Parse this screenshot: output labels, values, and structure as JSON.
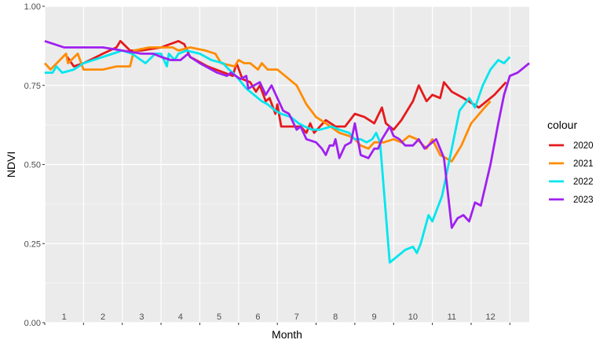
{
  "chart_data": {
    "type": "line",
    "xlabel": "Month",
    "ylabel": "NDVI",
    "xlim": [
      0,
      12.5
    ],
    "ylim": [
      0,
      1
    ],
    "x_ticks": [
      0,
      1,
      2,
      3,
      4,
      5,
      6,
      7,
      8,
      9,
      10,
      11,
      12
    ],
    "month_labels": [
      "1",
      "2",
      "3",
      "4",
      "5",
      "6",
      "7",
      "8",
      "9",
      "10",
      "11",
      "12"
    ],
    "y_ticks": [
      0,
      0.25,
      0.5,
      0.75,
      1
    ],
    "y_tick_labels": [
      "0.00",
      "0.25",
      "0.50",
      "0.75",
      "1.00"
    ],
    "grid": true,
    "legend": {
      "title": "colour",
      "position": "right"
    },
    "series": [
      {
        "name": "2020",
        "color": "#e41a1c",
        "points": [
          [
            0.58,
            0.84
          ],
          [
            0.75,
            0.81
          ],
          [
            1.0,
            0.82
          ],
          [
            1.5,
            0.85
          ],
          [
            1.85,
            0.87
          ],
          [
            1.95,
            0.89
          ],
          [
            2.2,
            0.86
          ],
          [
            2.5,
            0.86
          ],
          [
            3.0,
            0.87
          ],
          [
            3.45,
            0.89
          ],
          [
            3.6,
            0.88
          ],
          [
            3.75,
            0.84
          ],
          [
            4.2,
            0.81
          ],
          [
            4.85,
            0.78
          ],
          [
            4.95,
            0.82
          ],
          [
            5.1,
            0.77
          ],
          [
            5.3,
            0.76
          ],
          [
            5.45,
            0.73
          ],
          [
            5.55,
            0.75
          ],
          [
            5.7,
            0.7
          ],
          [
            5.8,
            0.71
          ],
          [
            5.95,
            0.66
          ],
          [
            6.0,
            0.69
          ],
          [
            6.1,
            0.62
          ],
          [
            6.3,
            0.62
          ],
          [
            6.6,
            0.62
          ],
          [
            6.75,
            0.6
          ],
          [
            6.85,
            0.63
          ],
          [
            6.95,
            0.6
          ],
          [
            7.1,
            0.62
          ],
          [
            7.25,
            0.64
          ],
          [
            7.5,
            0.62
          ],
          [
            7.75,
            0.62
          ],
          [
            8.0,
            0.66
          ],
          [
            8.25,
            0.65
          ],
          [
            8.5,
            0.63
          ],
          [
            8.7,
            0.68
          ],
          [
            8.8,
            0.63
          ],
          [
            9.0,
            0.61
          ],
          [
            9.2,
            0.64
          ],
          [
            9.5,
            0.7
          ],
          [
            9.65,
            0.75
          ],
          [
            9.85,
            0.7
          ],
          [
            10.0,
            0.72
          ],
          [
            10.2,
            0.71
          ],
          [
            10.3,
            0.76
          ],
          [
            10.5,
            0.73
          ],
          [
            10.8,
            0.71
          ],
          [
            11.2,
            0.68
          ],
          [
            11.6,
            0.72
          ],
          [
            11.9,
            0.76
          ]
        ]
      },
      {
        "name": "2021",
        "color": "#ff8c00",
        "points": [
          [
            0.0,
            0.82
          ],
          [
            0.15,
            0.8
          ],
          [
            0.55,
            0.85
          ],
          [
            0.6,
            0.82
          ],
          [
            0.85,
            0.85
          ],
          [
            1.0,
            0.8
          ],
          [
            1.5,
            0.8
          ],
          [
            1.85,
            0.81
          ],
          [
            2.2,
            0.81
          ],
          [
            2.3,
            0.86
          ],
          [
            2.7,
            0.87
          ],
          [
            3.0,
            0.87
          ],
          [
            3.3,
            0.87
          ],
          [
            3.45,
            0.86
          ],
          [
            3.75,
            0.87
          ],
          [
            4.15,
            0.86
          ],
          [
            4.4,
            0.85
          ],
          [
            4.55,
            0.82
          ],
          [
            4.9,
            0.81
          ],
          [
            5.0,
            0.83
          ],
          [
            5.15,
            0.82
          ],
          [
            5.3,
            0.82
          ],
          [
            5.5,
            0.8
          ],
          [
            5.6,
            0.82
          ],
          [
            5.75,
            0.8
          ],
          [
            6.0,
            0.8
          ],
          [
            6.5,
            0.75
          ],
          [
            6.75,
            0.69
          ],
          [
            7.0,
            0.65
          ],
          [
            7.25,
            0.63
          ],
          [
            7.6,
            0.6
          ],
          [
            7.85,
            0.59
          ],
          [
            8.0,
            0.58
          ],
          [
            8.15,
            0.56
          ],
          [
            8.35,
            0.55
          ],
          [
            8.5,
            0.57
          ],
          [
            8.75,
            0.57
          ],
          [
            9.0,
            0.58
          ],
          [
            9.2,
            0.57
          ],
          [
            9.4,
            0.59
          ],
          [
            9.6,
            0.58
          ],
          [
            9.85,
            0.55
          ],
          [
            10.0,
            0.58
          ],
          [
            10.2,
            0.53
          ],
          [
            10.5,
            0.51
          ],
          [
            10.75,
            0.56
          ],
          [
            11.0,
            0.63
          ],
          [
            11.35,
            0.68
          ],
          [
            11.5,
            0.7
          ]
        ]
      },
      {
        "name": "2022",
        "color": "#00e5ee",
        "points": [
          [
            0.0,
            0.79
          ],
          [
            0.2,
            0.79
          ],
          [
            0.3,
            0.81
          ],
          [
            0.45,
            0.79
          ],
          [
            0.75,
            0.8
          ],
          [
            1.0,
            0.82
          ],
          [
            1.5,
            0.84
          ],
          [
            2.0,
            0.86
          ],
          [
            2.25,
            0.85
          ],
          [
            2.6,
            0.82
          ],
          [
            2.85,
            0.85
          ],
          [
            3.0,
            0.85
          ],
          [
            3.15,
            0.81
          ],
          [
            3.2,
            0.85
          ],
          [
            3.35,
            0.83
          ],
          [
            3.45,
            0.85
          ],
          [
            3.65,
            0.86
          ],
          [
            4.0,
            0.85
          ],
          [
            4.3,
            0.83
          ],
          [
            4.6,
            0.82
          ],
          [
            4.75,
            0.8
          ],
          [
            4.85,
            0.79
          ],
          [
            5.0,
            0.77
          ],
          [
            5.2,
            0.74
          ],
          [
            5.4,
            0.72
          ],
          [
            5.6,
            0.7
          ],
          [
            5.75,
            0.69
          ],
          [
            5.95,
            0.67
          ],
          [
            6.1,
            0.66
          ],
          [
            6.35,
            0.65
          ],
          [
            6.55,
            0.63
          ],
          [
            6.7,
            0.62
          ],
          [
            6.9,
            0.61
          ],
          [
            7.1,
            0.61
          ],
          [
            7.4,
            0.62
          ],
          [
            7.6,
            0.61
          ],
          [
            7.85,
            0.6
          ],
          [
            8.0,
            0.58
          ],
          [
            8.15,
            0.58
          ],
          [
            8.3,
            0.57
          ],
          [
            8.45,
            0.58
          ],
          [
            8.55,
            0.6
          ],
          [
            8.65,
            0.57
          ],
          [
            8.9,
            0.19
          ],
          [
            9.1,
            0.21
          ],
          [
            9.3,
            0.23
          ],
          [
            9.5,
            0.24
          ],
          [
            9.6,
            0.22
          ],
          [
            9.7,
            0.25
          ],
          [
            9.9,
            0.34
          ],
          [
            10.0,
            0.32
          ],
          [
            10.25,
            0.4
          ],
          [
            10.5,
            0.55
          ],
          [
            10.7,
            0.67
          ],
          [
            10.95,
            0.71
          ],
          [
            11.1,
            0.68
          ],
          [
            11.3,
            0.75
          ],
          [
            11.5,
            0.8
          ],
          [
            11.7,
            0.83
          ],
          [
            11.85,
            0.82
          ],
          [
            12.0,
            0.84
          ]
        ]
      },
      {
        "name": "2023",
        "color": "#a020f0",
        "points": [
          [
            0.0,
            0.89
          ],
          [
            0.5,
            0.87
          ],
          [
            1.0,
            0.87
          ],
          [
            1.5,
            0.87
          ],
          [
            2.0,
            0.86
          ],
          [
            2.5,
            0.85
          ],
          [
            2.8,
            0.85
          ],
          [
            3.0,
            0.84
          ],
          [
            3.25,
            0.83
          ],
          [
            3.5,
            0.83
          ],
          [
            3.7,
            0.85
          ],
          [
            3.75,
            0.84
          ],
          [
            4.0,
            0.82
          ],
          [
            4.45,
            0.79
          ],
          [
            4.7,
            0.78
          ],
          [
            4.8,
            0.79
          ],
          [
            5.05,
            0.77
          ],
          [
            5.2,
            0.78
          ],
          [
            5.25,
            0.74
          ],
          [
            5.4,
            0.75
          ],
          [
            5.55,
            0.76
          ],
          [
            5.7,
            0.72
          ],
          [
            5.85,
            0.75
          ],
          [
            6.0,
            0.71
          ],
          [
            6.15,
            0.67
          ],
          [
            6.3,
            0.66
          ],
          [
            6.5,
            0.61
          ],
          [
            6.6,
            0.62
          ],
          [
            6.75,
            0.58
          ],
          [
            7.0,
            0.57
          ],
          [
            7.15,
            0.55
          ],
          [
            7.25,
            0.53
          ],
          [
            7.35,
            0.56
          ],
          [
            7.45,
            0.56
          ],
          [
            7.5,
            0.58
          ],
          [
            7.6,
            0.52
          ],
          [
            7.75,
            0.56
          ],
          [
            7.9,
            0.57
          ],
          [
            8.0,
            0.63
          ],
          [
            8.15,
            0.53
          ],
          [
            8.35,
            0.52
          ],
          [
            8.5,
            0.55
          ],
          [
            8.6,
            0.55
          ],
          [
            8.7,
            0.58
          ],
          [
            8.9,
            0.62
          ],
          [
            9.0,
            0.59
          ],
          [
            9.15,
            0.58
          ],
          [
            9.3,
            0.56
          ],
          [
            9.5,
            0.56
          ],
          [
            9.65,
            0.58
          ],
          [
            9.8,
            0.55
          ],
          [
            10.0,
            0.57
          ],
          [
            10.1,
            0.58
          ],
          [
            10.2,
            0.55
          ],
          [
            10.3,
            0.52
          ],
          [
            10.5,
            0.3
          ],
          [
            10.65,
            0.33
          ],
          [
            10.8,
            0.34
          ],
          [
            10.95,
            0.32
          ],
          [
            11.1,
            0.38
          ],
          [
            11.25,
            0.37
          ],
          [
            11.5,
            0.5
          ],
          [
            11.7,
            0.63
          ],
          [
            11.85,
            0.72
          ],
          [
            12.0,
            0.78
          ],
          [
            12.2,
            0.79
          ],
          [
            12.5,
            0.82
          ]
        ]
      }
    ]
  }
}
